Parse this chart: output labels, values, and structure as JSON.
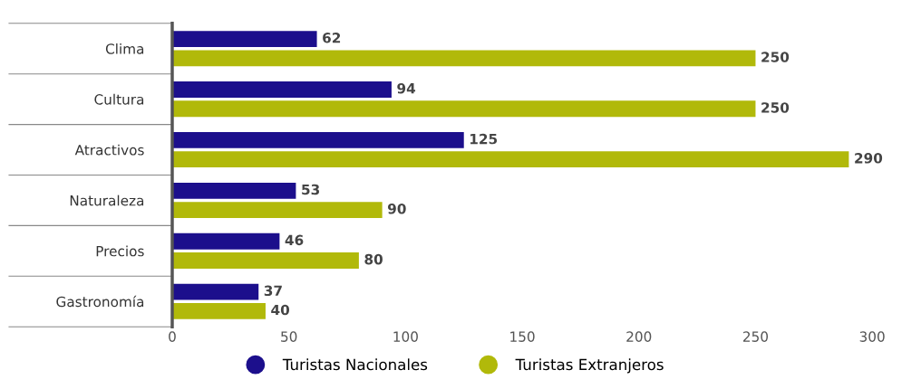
{
  "chart_data": {
    "type": "bar",
    "orientation": "horizontal",
    "categories": [
      "Clima",
      "Cultura",
      "Atractivos",
      "Naturaleza",
      "Precios",
      "Gastronomía"
    ],
    "series": [
      {
        "name": "Turistas Nacionales",
        "color": "#1c0f8c",
        "values": [
          62,
          94,
          125,
          53,
          46,
          37
        ]
      },
      {
        "name": "Turistas Extranjeros",
        "color": "#b1b90a",
        "values": [
          250,
          250,
          290,
          90,
          80,
          40
        ]
      }
    ],
    "xlim": [
      0,
      300
    ],
    "xticks": [
      0,
      50,
      100,
      150,
      200,
      250,
      300
    ],
    "data_labels": true,
    "grid": false,
    "legend": "bottom"
  }
}
